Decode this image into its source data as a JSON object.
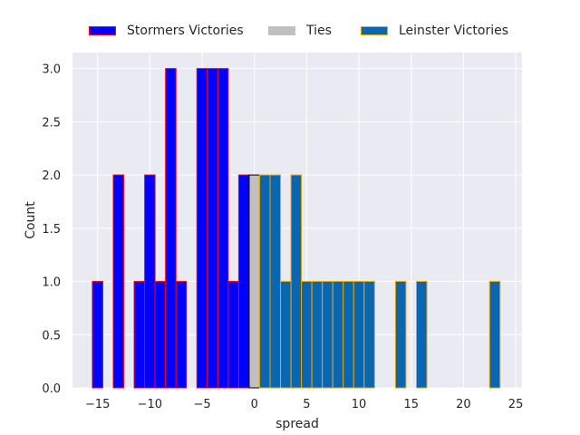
{
  "chart_data": {
    "type": "bar",
    "title": "",
    "xlabel": "spread",
    "ylabel": "Count",
    "xlim": [
      -17.4,
      25.6
    ],
    "ylim": [
      0,
      3.15
    ],
    "xticks": [
      -15,
      -10,
      -5,
      0,
      5,
      10,
      15,
      20,
      25
    ],
    "yticks": [
      0.0,
      0.5,
      1.0,
      1.5,
      2.0,
      2.5,
      3.0
    ],
    "xtick_labels": [
      "−15",
      "−10",
      "−5",
      "0",
      "5",
      "10",
      "15",
      "20",
      "25"
    ],
    "ytick_labels": [
      "0.0",
      "0.5",
      "1.0",
      "1.5",
      "2.0",
      "2.5",
      "3.0"
    ],
    "grid": true,
    "legend_position": "top",
    "series": [
      {
        "name": "Stormers Victories",
        "fill": "#0000ff",
        "edge": "#ff0000",
        "bins": [
          {
            "x": -15,
            "count": 1
          },
          {
            "x": -13,
            "count": 2
          },
          {
            "x": -11,
            "count": 1
          },
          {
            "x": -10,
            "count": 2
          },
          {
            "x": -9,
            "count": 1
          },
          {
            "x": -8,
            "count": 3
          },
          {
            "x": -7,
            "count": 1
          },
          {
            "x": -5,
            "count": 3
          },
          {
            "x": -4,
            "count": 3
          },
          {
            "x": -3,
            "count": 3
          },
          {
            "x": -2,
            "count": 1
          },
          {
            "x": -1,
            "count": 2
          }
        ]
      },
      {
        "name": "Ties",
        "fill": "#c0c0c0",
        "edge": "#000000",
        "bins": [
          {
            "x": 0,
            "count": 2
          }
        ]
      },
      {
        "name": "Leinster Victories",
        "fill": "#0a66b0",
        "edge": "#e6a800",
        "bins": [
          {
            "x": 1,
            "count": 2
          },
          {
            "x": 2,
            "count": 2
          },
          {
            "x": 3,
            "count": 1
          },
          {
            "x": 4,
            "count": 2
          },
          {
            "x": 5,
            "count": 1
          },
          {
            "x": 6,
            "count": 1
          },
          {
            "x": 7,
            "count": 1
          },
          {
            "x": 8,
            "count": 1
          },
          {
            "x": 9,
            "count": 1
          },
          {
            "x": 10,
            "count": 1
          },
          {
            "x": 11,
            "count": 1
          },
          {
            "x": 14,
            "count": 1
          },
          {
            "x": 16,
            "count": 1
          },
          {
            "x": 23,
            "count": 1
          }
        ]
      }
    ]
  },
  "colors": {
    "plot_background": "#eaeaf2",
    "grid": "#ffffff",
    "text": "#262626"
  }
}
